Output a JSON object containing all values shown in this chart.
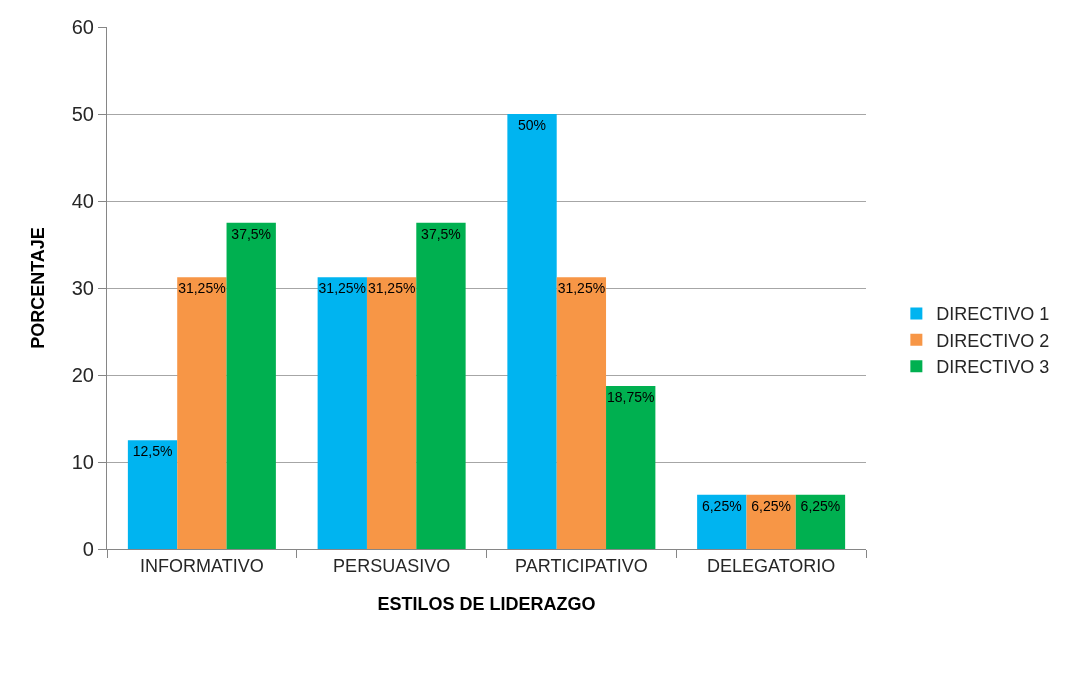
{
  "chart_data": {
    "type": "bar",
    "xlabel": "ESTILOS DE LIDERAZGO",
    "ylabel": "PORCENTAJE",
    "categories": [
      "INFORMATIVO",
      "PERSUASIVO",
      "PARTICIPATIVO",
      "DELEGATORIO"
    ],
    "series": [
      {
        "name": "DIRECTIVO 1",
        "color": "#00b4f0",
        "values": [
          12.5,
          31.25,
          50,
          6.25
        ],
        "value_labels": [
          "12,5%",
          "31,25%",
          "50%",
          "6,25%"
        ]
      },
      {
        "name": "DIRECTIVO 2",
        "color": "#f79646",
        "values": [
          31.25,
          31.25,
          31.25,
          6.25
        ],
        "value_labels": [
          "31,25%",
          "31,25%",
          "31,25%",
          "6,25%"
        ]
      },
      {
        "name": "DIRECTIVO 3",
        "color": "#00b050",
        "values": [
          37.5,
          37.5,
          18.75,
          6.25
        ],
        "value_labels": [
          "37,5%",
          "37,5%",
          "18,75%",
          "6,25%"
        ]
      }
    ],
    "ylim": [
      0,
      60
    ],
    "yticks": [
      0,
      10,
      20,
      30,
      40,
      50,
      60
    ],
    "grid": "y",
    "legend": "right"
  }
}
